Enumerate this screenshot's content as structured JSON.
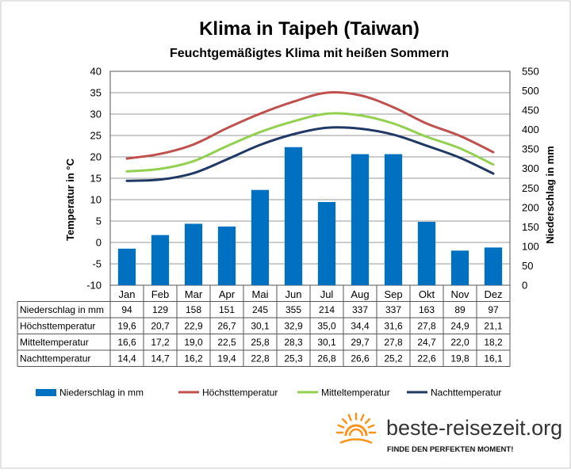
{
  "chart_data": {
    "type": "bar",
    "title": "Klima in Taipeh (Taiwan)",
    "subtitle": "Feuchtgemäßigtes  Klima mit heißen Sommern",
    "categories": [
      "Jan",
      "Feb",
      "Mar",
      "Apr",
      "Mai",
      "Jun",
      "Jul",
      "Aug",
      "Sep",
      "Okt",
      "Nov",
      "Dez"
    ],
    "ylabel_left": "Temperatur in °C",
    "ylabel_right": "Niederschlag in mm",
    "ylim_left": [
      -10,
      40
    ],
    "yticks_left": [
      "40",
      "35",
      "30",
      "25",
      "20",
      "15",
      "10",
      "5",
      "0",
      "-5",
      "-10"
    ],
    "ylim_right": [
      0,
      550
    ],
    "yticks_right": [
      "550",
      "500",
      "450",
      "400",
      "350",
      "300",
      "250",
      "200",
      "150",
      "100",
      "50",
      "0"
    ],
    "grid": true,
    "legend_position": "bottom",
    "series": [
      {
        "name": "Niederschlag in mm",
        "type": "bar",
        "axis": "right",
        "color": "#0070c0",
        "values": [
          94,
          129,
          158,
          151,
          245,
          355,
          214,
          337,
          337,
          163,
          89,
          97
        ],
        "labels": [
          "94",
          "129",
          "158",
          "151",
          "245",
          "355",
          "214",
          "337",
          "337",
          "163",
          "89",
          "97"
        ]
      },
      {
        "name": "Höchsttemperatur",
        "type": "line",
        "axis": "left",
        "color": "#c0504d",
        "values": [
          19.6,
          20.7,
          22.9,
          26.7,
          30.1,
          32.9,
          35.0,
          34.4,
          31.6,
          27.8,
          24.9,
          21.1
        ],
        "labels": [
          "19,6",
          "20,7",
          "22,9",
          "26,7",
          "30,1",
          "32,9",
          "35,0",
          "34,4",
          "31,6",
          "27,8",
          "24,9",
          "21,1"
        ]
      },
      {
        "name": "Mitteltemperatur",
        "type": "line",
        "axis": "left",
        "color": "#92d050",
        "values": [
          16.6,
          17.2,
          19.0,
          22.5,
          25.8,
          28.3,
          30.1,
          29.7,
          27.8,
          24.7,
          22.0,
          18.2
        ],
        "labels": [
          "16,6",
          "17,2",
          "19,0",
          "22,5",
          "25,8",
          "28,3",
          "30,1",
          "29,7",
          "27,8",
          "24,7",
          "22,0",
          "18,2"
        ]
      },
      {
        "name": "Nachttemperatur",
        "type": "line",
        "axis": "left",
        "color": "#1f3864",
        "values": [
          14.4,
          14.7,
          16.2,
          19.4,
          22.8,
          25.3,
          26.8,
          26.6,
          25.2,
          22.6,
          19.8,
          16.1
        ],
        "labels": [
          "14,4",
          "14,7",
          "16,2",
          "19,4",
          "22,8",
          "25,3",
          "26,8",
          "26,6",
          "25,2",
          "22,6",
          "19,8",
          "16,1"
        ]
      }
    ]
  },
  "branding": {
    "name": "beste-reisezeit.org",
    "tagline": "FINDE DEN PERFEKTEN MOMENT!",
    "sun_color": "#f7941d"
  }
}
